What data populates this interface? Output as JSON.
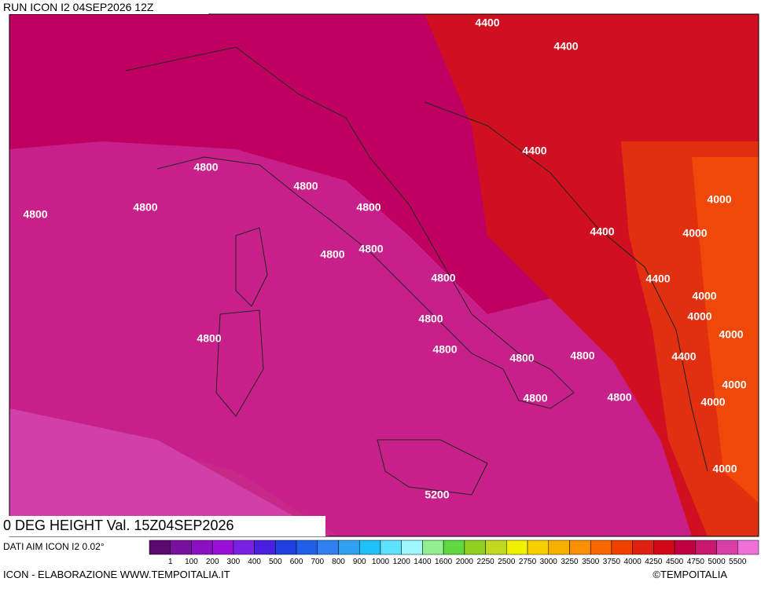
{
  "header": {
    "run": "RUN ICON I2 04SEP2026 12Z"
  },
  "title": "0 DEG HEIGHT Val. 15Z04SEP2026",
  "source": "DATI AIM ICON I2 0.02°",
  "footer": {
    "left": "ICON - ELABORAZIONE WWW.TEMPOITALIA.IT",
    "right": "©TEMPOITALIA"
  },
  "colorbar": {
    "colors": [
      "#5a0a6e",
      "#7a10a0",
      "#8c10c0",
      "#9a10d8",
      "#7a20e0",
      "#4a20e0",
      "#2040e0",
      "#2060e8",
      "#3080f0",
      "#30a0f0",
      "#20c0f8",
      "#60e0ff",
      "#a0f8ff",
      "#90f090",
      "#60d840",
      "#90d020",
      "#c0d820",
      "#f0f000",
      "#f8d000",
      "#f8b000",
      "#f89000",
      "#f86800",
      "#f04000",
      "#e02010",
      "#d00818",
      "#c00040",
      "#c81870",
      "#d840a8",
      "#f070d8"
    ],
    "labels": [
      "1",
      "100",
      "200",
      "300",
      "400",
      "500",
      "600",
      "700",
      "800",
      "900",
      "1000",
      "1200",
      "1400",
      "1600",
      "2000",
      "2250",
      "2500",
      "2750",
      "3000",
      "3250",
      "3500",
      "3750",
      "4000",
      "4250",
      "4500",
      "4750",
      "5000",
      "5500"
    ]
  },
  "contour_labels": [
    "4400",
    "4400",
    "4400",
    "4000",
    "4400",
    "4000",
    "4400",
    "4000",
    "4000",
    "4000",
    "4400",
    "4000",
    "4000",
    "4000",
    "4800",
    "4800",
    "4800",
    "4800",
    "4800",
    "4800",
    "4800",
    "4800",
    "4800",
    "4800",
    "4800",
    "4800",
    "4800",
    "4800",
    "4800",
    "5200"
  ]
}
